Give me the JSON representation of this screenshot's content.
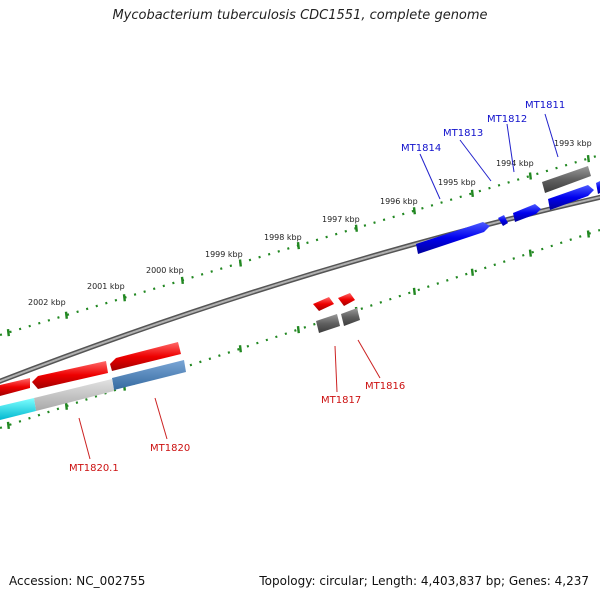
{
  "title": "Mycobacterium tuberculosis CDC1551, complete genome",
  "footer": {
    "accession": "Accession: NC_002755",
    "stats": "Topology: circular; Length: 4,403,837 bp; Genes: 4,237"
  },
  "colors": {
    "forward_gene": "#0000ee",
    "reverse_gene": "#ee0000",
    "pseudo_gene": "#666666",
    "ruler": "#228822",
    "backbone": "#888888"
  },
  "scale_labels": [
    "1993 kbp",
    "1994 kbp",
    "1995 kbp",
    "1996 kbp",
    "1997 kbp",
    "1998 kbp",
    "1999 kbp",
    "2000 kbp",
    "2001 kbp",
    "2002 kbp"
  ],
  "gene_labels": {
    "forward": [
      "MT1811",
      "MT1812",
      "MT1813",
      "MT1814"
    ],
    "reverse": [
      "MT1816",
      "MT1817",
      "MT1820",
      "MT1820.1"
    ]
  }
}
